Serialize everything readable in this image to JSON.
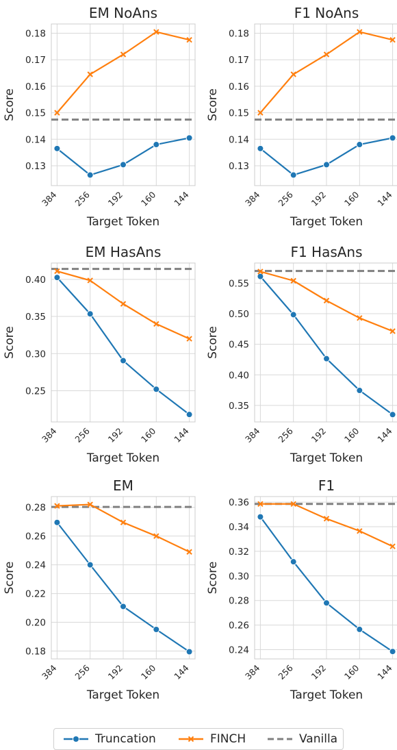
{
  "colors": {
    "truncation": "#1f77b4",
    "finch": "#ff7f0e",
    "vanilla": "#808080",
    "panel_bg": "#ffffff",
    "grid": "#d9d9d9",
    "text": "#262626"
  },
  "legend": {
    "placement": "bottom-center",
    "items": [
      {
        "label": "Truncation",
        "color": "#1f77b4",
        "marker": "circle",
        "line": "solid"
      },
      {
        "label": "FINCH",
        "color": "#ff7f0e",
        "marker": "x",
        "line": "solid"
      },
      {
        "label": "Vanilla",
        "color": "#808080",
        "marker": "none",
        "line": "dashed"
      }
    ]
  },
  "chart_data": [
    {
      "type": "line",
      "title": "EM NoAns",
      "xlabel": "Target Token",
      "ylabel": "Score",
      "categories": [
        "384",
        "256",
        "192",
        "160",
        "144"
      ],
      "ylim": [
        0.1225,
        0.1835
      ],
      "yticks": [
        "0.13",
        "0.14",
        "0.15",
        "0.16",
        "0.17",
        "0.18"
      ],
      "series": [
        {
          "name": "Truncation",
          "values": [
            0.1365,
            0.1265,
            0.1304,
            0.138,
            0.1405
          ]
        },
        {
          "name": "FINCH",
          "values": [
            0.15,
            0.1645,
            0.172,
            0.1805,
            0.1775
          ]
        }
      ],
      "vanilla": 0.1474,
      "grid": true
    },
    {
      "type": "line",
      "title": "F1 NoAns",
      "xlabel": "Target Token",
      "ylabel": "Score",
      "categories": [
        "384",
        "256",
        "192",
        "160",
        "144"
      ],
      "ylim": [
        0.1225,
        0.1835
      ],
      "yticks": [
        "0.13",
        "0.14",
        "0.15",
        "0.16",
        "0.17",
        "0.18"
      ],
      "series": [
        {
          "name": "Truncation",
          "values": [
            0.1365,
            0.1265,
            0.1304,
            0.138,
            0.1405
          ]
        },
        {
          "name": "FINCH",
          "values": [
            0.15,
            0.1645,
            0.172,
            0.1805,
            0.1775
          ]
        }
      ],
      "vanilla": 0.1474,
      "grid": true
    },
    {
      "type": "line",
      "title": "EM HasAns",
      "xlabel": "Target Token",
      "ylabel": "Score",
      "categories": [
        "384",
        "256",
        "192",
        "160",
        "144"
      ],
      "ylim": [
        0.208,
        0.422
      ],
      "yticks": [
        "0.25",
        "0.30",
        "0.35",
        "0.40"
      ],
      "series": [
        {
          "name": "Truncation",
          "values": [
            0.4025,
            0.3535,
            0.2905,
            0.252,
            0.218
          ]
        },
        {
          "name": "FINCH",
          "values": [
            0.411,
            0.3985,
            0.367,
            0.34,
            0.32
          ]
        }
      ],
      "vanilla": 0.414,
      "grid": true
    },
    {
      "type": "line",
      "title": "F1 HasAns",
      "xlabel": "Target Token",
      "ylabel": "Score",
      "categories": [
        "384",
        "256",
        "192",
        "160",
        "144"
      ],
      "ylim": [
        0.323,
        0.583
      ],
      "yticks": [
        "0.35",
        "0.40",
        "0.45",
        "0.50",
        "0.55"
      ],
      "series": [
        {
          "name": "Truncation",
          "values": [
            0.561,
            0.4985,
            0.4265,
            0.3745,
            0.335
          ]
        },
        {
          "name": "FINCH",
          "values": [
            0.569,
            0.554,
            0.5215,
            0.493,
            0.4715
          ]
        }
      ],
      "vanilla": 0.57,
      "grid": true
    },
    {
      "type": "line",
      "title": "EM",
      "xlabel": "Target Token",
      "ylabel": "Score",
      "categories": [
        "384",
        "256",
        "192",
        "160",
        "144"
      ],
      "ylim": [
        0.1745,
        0.2875
      ],
      "yticks": [
        "0.18",
        "0.20",
        "0.22",
        "0.24",
        "0.26",
        "0.28"
      ],
      "series": [
        {
          "name": "Truncation",
          "values": [
            0.2695,
            0.24,
            0.211,
            0.195,
            0.1795
          ]
        },
        {
          "name": "FINCH",
          "values": [
            0.281,
            0.282,
            0.2695,
            0.26,
            0.249
          ]
        }
      ],
      "vanilla": 0.2803,
      "grid": true
    },
    {
      "type": "line",
      "title": "F1",
      "xlabel": "Target Token",
      "ylabel": "Score",
      "categories": [
        "384",
        "256",
        "192",
        "160",
        "144"
      ],
      "ylim": [
        0.2325,
        0.3645
      ],
      "yticks": [
        "0.24",
        "0.26",
        "0.28",
        "0.30",
        "0.32",
        "0.34",
        "0.36"
      ],
      "series": [
        {
          "name": "Truncation",
          "values": [
            0.348,
            0.3115,
            0.278,
            0.2565,
            0.2385
          ]
        },
        {
          "name": "FINCH",
          "values": [
            0.3585,
            0.3585,
            0.3465,
            0.3365,
            0.324
          ]
        }
      ],
      "vanilla": 0.3585,
      "grid": true
    }
  ]
}
